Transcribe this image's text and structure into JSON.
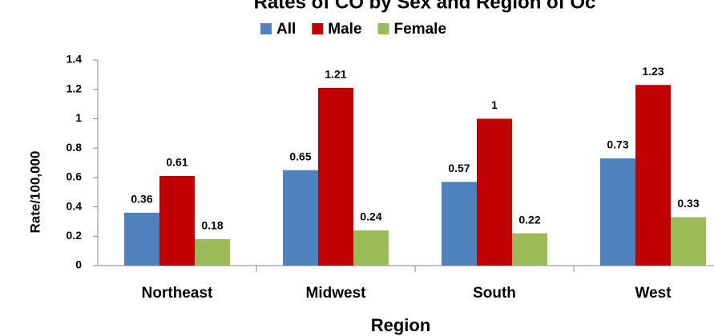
{
  "chart_data": {
    "type": "bar",
    "title": "Rates of CO by Sex and Region of Oc",
    "x_label": "Region",
    "y_label": "Rate/100,000",
    "categories": [
      "Northeast",
      "Midwest",
      "South",
      "West"
    ],
    "series": [
      {
        "name": "All",
        "color": "#4f81bd",
        "values": [
          0.36,
          0.65,
          0.57,
          0.73
        ]
      },
      {
        "name": "Male",
        "color": "#c00000",
        "values": [
          0.61,
          1.21,
          1,
          1.23
        ]
      },
      {
        "name": "Female",
        "color": "#9bbb59",
        "values": [
          0.18,
          0.24,
          0.22,
          0.33
        ]
      }
    ],
    "ylim": [
      0,
      1.4
    ],
    "yticks": [
      0,
      0.2,
      0.4,
      0.6,
      0.8,
      1,
      1.2,
      1.4
    ],
    "grid": false,
    "legend": "top"
  }
}
